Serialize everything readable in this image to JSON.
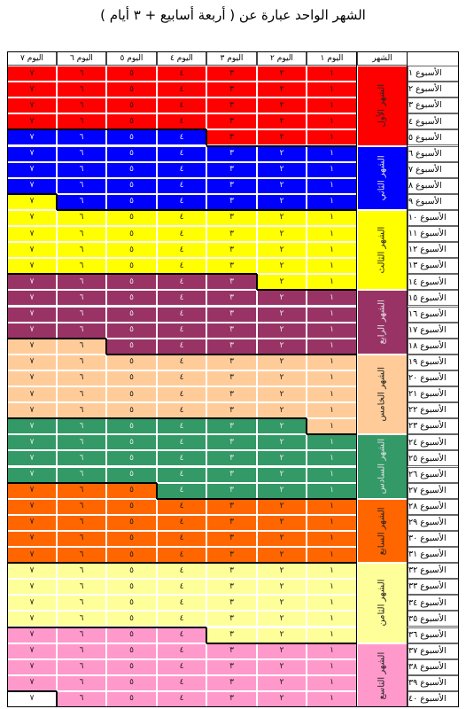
{
  "title": "الشهر الواحد عبارة عن ( أربعة أسابيع + ٣ أيام )",
  "header": {
    "month_label": "الشهر",
    "days": [
      "اليوم ١",
      "اليوم ٢",
      "اليوم ٣",
      "اليوم ٤",
      "اليوم ٥",
      "اليوم ٦",
      "اليوم ٧"
    ]
  },
  "day_numbers": [
    "١",
    "٢",
    "٣",
    "٤",
    "٥",
    "٦",
    "٧"
  ],
  "weeks": [
    "الأسبوع ١",
    "الأسبوع ٢",
    "الأسبوع ٣",
    "الأسبوع ٤",
    "الأسبوع ٥",
    "الأسبوع ٦",
    "الأسبوع ٧",
    "الأسبوع ٨",
    "الأسبوع ٩",
    "الأسبوع ١٠",
    "الأسبوع ١١",
    "الأسبوع ١٢",
    "الأسبوع ١٣",
    "الأسبوع ١٤",
    "الأسبوع ١٥",
    "الأسبوع ١٦",
    "الأسبوع ١٧",
    "الأسبوع ١٨",
    "الأسبوع ١٩",
    "الأسبوع ٢٠",
    "الأسبوع ٢١",
    "الأسبوع ٢٢",
    "الأسبوع ٢٣",
    "الأسبوع ٢٤",
    "الأسبوع ٢٥",
    "الأسبوع ٢٦",
    "الأسبوع ٢٧",
    "الأسبوع ٢٨",
    "الأسبوع ٢٩",
    "الأسبوع ٣٠",
    "الأسبوع ٣١",
    "الأسبوع ٣٢",
    "الأسبوع ٣٣",
    "الأسبوع ٣٤",
    "الأسبوع ٣٥",
    "الأسبوع ٣٦",
    "الأسبوع ٣٧",
    "الأسبوع ٣٨",
    "الأسبوع ٣٩",
    "الأسبوع ٤٠"
  ],
  "months": [
    {
      "name": "الشهر الأول",
      "color": "#ff0000"
    },
    {
      "name": "الشهر الثاني",
      "color": "#0000ff"
    },
    {
      "name": "الشهر الثالث",
      "color": "#ffff00"
    },
    {
      "name": "الشهر الرابع",
      "color": "#993366"
    },
    {
      "name": "الشهر الخامس",
      "color": "#ffcc99"
    },
    {
      "name": "الشهر السادس",
      "color": "#339966"
    },
    {
      "name": "الشهر السابع",
      "color": "#ff6600"
    },
    {
      "name": "الشهر الثامن",
      "color": "#ffff99"
    },
    {
      "name": "الشهر التاسع",
      "color": "#ff99cc"
    }
  ]
}
